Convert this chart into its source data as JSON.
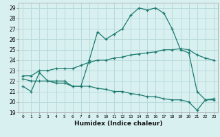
{
  "xlabel": "Humidex (Indice chaleur)",
  "bg_color": "#d9f0f0",
  "grid_color": "#b8dada",
  "line_color": "#1a7a6e",
  "xlim": [
    -0.5,
    23.5
  ],
  "ylim": [
    19,
    29.5
  ],
  "yticks": [
    19,
    20,
    21,
    22,
    23,
    24,
    25,
    26,
    27,
    28,
    29
  ],
  "xticks": [
    0,
    1,
    2,
    3,
    4,
    5,
    6,
    7,
    8,
    9,
    10,
    11,
    12,
    13,
    14,
    15,
    16,
    17,
    18,
    19,
    20,
    21,
    22,
    23
  ],
  "line1_x": [
    0,
    1,
    2,
    3,
    4,
    5,
    6,
    7,
    8,
    9,
    10,
    11,
    12,
    13,
    14,
    15,
    16,
    17,
    18,
    19,
    20,
    21,
    22,
    23
  ],
  "line1_y": [
    21.5,
    21.0,
    22.8,
    22.0,
    22.0,
    22.0,
    21.5,
    21.5,
    24.0,
    26.7,
    26.0,
    26.5,
    27.0,
    28.3,
    29.0,
    28.8,
    29.0,
    28.5,
    27.0,
    25.0,
    24.7,
    21.0,
    20.2,
    20.2
  ],
  "line2_x": [
    0,
    1,
    2,
    3,
    4,
    5,
    6,
    7,
    8,
    9,
    10,
    11,
    12,
    13,
    14,
    15,
    16,
    17,
    18,
    19,
    20,
    21,
    22,
    23
  ],
  "line2_y": [
    22.5,
    22.5,
    23.0,
    23.0,
    23.2,
    23.2,
    23.2,
    23.5,
    23.8,
    24.0,
    24.0,
    24.2,
    24.3,
    24.5,
    24.6,
    24.7,
    24.8,
    25.0,
    25.0,
    25.1,
    25.0,
    24.5,
    24.2,
    24.0
  ],
  "line3_x": [
    0,
    1,
    2,
    3,
    4,
    5,
    6,
    7,
    8,
    9,
    10,
    11,
    12,
    13,
    14,
    15,
    16,
    17,
    18,
    19,
    20,
    21,
    22,
    23
  ],
  "line3_y": [
    22.2,
    22.0,
    22.0,
    22.0,
    21.8,
    21.8,
    21.5,
    21.5,
    21.5,
    21.3,
    21.2,
    21.0,
    21.0,
    20.8,
    20.7,
    20.5,
    20.5,
    20.3,
    20.2,
    20.2,
    20.0,
    19.2,
    20.2,
    20.3
  ]
}
